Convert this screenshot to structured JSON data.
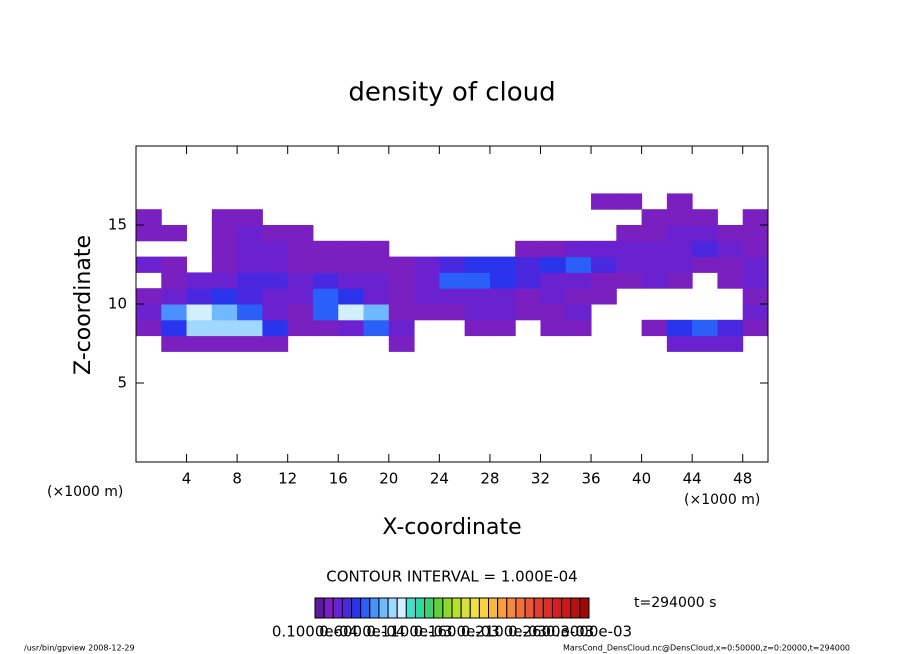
{
  "chart_data": {
    "type": "heatmap",
    "title": "density of cloud",
    "x_label": "X-coordinate",
    "y_label": "Z-coordinate",
    "x_unit": "(×1000 m)",
    "y_unit": "(×1000 m)",
    "contour_interval": "CONTOUR INTERVAL = 1.000E-04",
    "time_label": "t=294000 s",
    "footer_left": "/usr/bin/gpview  2008-12-29",
    "footer_right": "MarsCond_DensCloud.nc@DensCloud,x=0:50000,z=0:20000,t=294000",
    "xlim": [
      0,
      50
    ],
    "ylim": [
      0,
      20
    ],
    "xticks": [
      4,
      8,
      12,
      16,
      20,
      24,
      28,
      32,
      36,
      40,
      44,
      48
    ],
    "yticks": [
      5,
      10,
      15
    ],
    "x": [
      1,
      3,
      5,
      7,
      9,
      11,
      13,
      15,
      17,
      19,
      21,
      23,
      25,
      27,
      29,
      31,
      33,
      35,
      37,
      39,
      41,
      43,
      45,
      47,
      49
    ],
    "z": [
      7.5,
      8.5,
      9.5,
      10.5,
      11.5,
      12.5,
      13.5,
      14.5,
      15.5,
      16.5
    ],
    "values": [
      [
        null,
        2e-05,
        2e-05,
        2e-05,
        2e-05,
        2e-05,
        null,
        null,
        null,
        null,
        2e-05,
        null,
        null,
        null,
        null,
        null,
        null,
        null,
        null,
        null,
        null,
        3e-05,
        3e-05,
        3e-05,
        null
      ],
      [
        2e-05,
        5e-05,
        9e-05,
        9e-05,
        9e-05,
        5e-05,
        2e-05,
        2e-05,
        3e-05,
        6e-05,
        3e-05,
        null,
        null,
        2e-05,
        2e-05,
        null,
        2e-05,
        2e-05,
        null,
        null,
        2e-05,
        5e-05,
        6e-05,
        4e-05,
        2e-05
      ],
      [
        3e-05,
        7e-05,
        0.0001,
        8e-05,
        6e-05,
        3e-05,
        2e-05,
        6e-05,
        0.0001,
        8e-05,
        2e-05,
        2e-05,
        2e-05,
        3e-05,
        3e-05,
        2e-05,
        2e-05,
        3e-05,
        null,
        null,
        null,
        null,
        null,
        null,
        3e-05
      ],
      [
        2e-05,
        3e-05,
        4e-05,
        5e-05,
        4e-05,
        3e-05,
        3e-05,
        6e-05,
        5e-05,
        3e-05,
        2e-05,
        3e-05,
        3e-05,
        3e-05,
        3e-05,
        2e-05,
        3e-05,
        2e-05,
        2e-05,
        null,
        null,
        null,
        null,
        null,
        2e-05
      ],
      [
        null,
        2e-05,
        3e-05,
        3e-05,
        4e-05,
        4e-05,
        3e-05,
        4e-05,
        3e-05,
        3e-05,
        2e-05,
        3e-05,
        6e-05,
        6e-05,
        5e-05,
        4e-05,
        3e-05,
        3e-05,
        2e-05,
        2e-05,
        3e-05,
        2e-05,
        null,
        2e-05,
        3e-05
      ],
      [
        3e-05,
        2e-05,
        null,
        2e-05,
        3e-05,
        3e-05,
        2e-05,
        2e-05,
        2e-05,
        2e-05,
        2e-05,
        3e-05,
        4e-05,
        5e-05,
        5e-05,
        4e-05,
        5e-05,
        6e-05,
        4e-05,
        3e-05,
        3e-05,
        3e-05,
        2e-05,
        2e-05,
        3e-05
      ],
      [
        null,
        null,
        null,
        2e-05,
        3e-05,
        3e-05,
        2e-05,
        2e-05,
        2e-05,
        2e-05,
        null,
        null,
        null,
        null,
        null,
        2e-05,
        2e-05,
        3e-05,
        3e-05,
        3e-05,
        3e-05,
        3e-05,
        4e-05,
        3e-05,
        2e-05
      ],
      [
        2e-05,
        2e-05,
        null,
        2e-05,
        3e-05,
        2e-05,
        2e-05,
        null,
        null,
        null,
        null,
        null,
        null,
        null,
        null,
        null,
        null,
        null,
        null,
        2e-05,
        2e-05,
        3e-05,
        3e-05,
        2e-05,
        2e-05
      ],
      [
        2e-05,
        null,
        null,
        2e-05,
        2e-05,
        null,
        null,
        null,
        null,
        null,
        null,
        null,
        null,
        null,
        null,
        null,
        null,
        null,
        null,
        null,
        2e-05,
        2e-05,
        2e-05,
        null,
        2e-05
      ],
      [
        null,
        null,
        null,
        null,
        null,
        null,
        null,
        null,
        null,
        null,
        null,
        null,
        null,
        null,
        null,
        null,
        null,
        null,
        2e-05,
        2e-05,
        null,
        2e-05,
        null,
        null,
        null
      ]
    ],
    "levels": [
      1e-05,
      2e-05,
      3e-05,
      4e-05,
      5e-05,
      6e-05,
      7e-05,
      8e-05,
      9e-05,
      0.0001,
      0.00011,
      0.00012,
      0.00013,
      0.00014,
      0.00015,
      0.00016,
      0.00017,
      0.00018,
      0.00019,
      0.0002,
      0.00021,
      0.00022,
      0.00023,
      0.00024,
      0.00025,
      0.00026,
      0.00027,
      0.00028,
      0.00029,
      0.0003
    ],
    "colors": [
      "#5a1a9a",
      "#7a20c0",
      "#6a22d0",
      "#4a28e0",
      "#2a34ec",
      "#2a60f8",
      "#4a90ff",
      "#70b8ff",
      "#a0d8ff",
      "#d0f0ff",
      "#40e0d0",
      "#30d8a0",
      "#40d070",
      "#60d040",
      "#90d830",
      "#b8e030",
      "#d8e040",
      "#f0e040",
      "#f8d040",
      "#f8b840",
      "#f8a040",
      "#f88840",
      "#f07040",
      "#e85838",
      "#e04030",
      "#d83028",
      "#d02020",
      "#c81818",
      "#b81010",
      "#a00808"
    ],
    "colorbar_ticks": [
      {
        "value": 1e-05,
        "label": "0.1000e-04"
      },
      {
        "value": 6e-05,
        "label": "0.6000e-04"
      },
      {
        "value": 0.00011,
        "label": "0.1100e-03"
      },
      {
        "value": 0.00016,
        "label": "0.1600e-03"
      },
      {
        "value": 0.00021,
        "label": "0.2100e-03"
      },
      {
        "value": 0.00026,
        "label": "0.2600e-03"
      },
      {
        "value": 0.0003,
        "label": "0.3000e-03"
      }
    ]
  }
}
